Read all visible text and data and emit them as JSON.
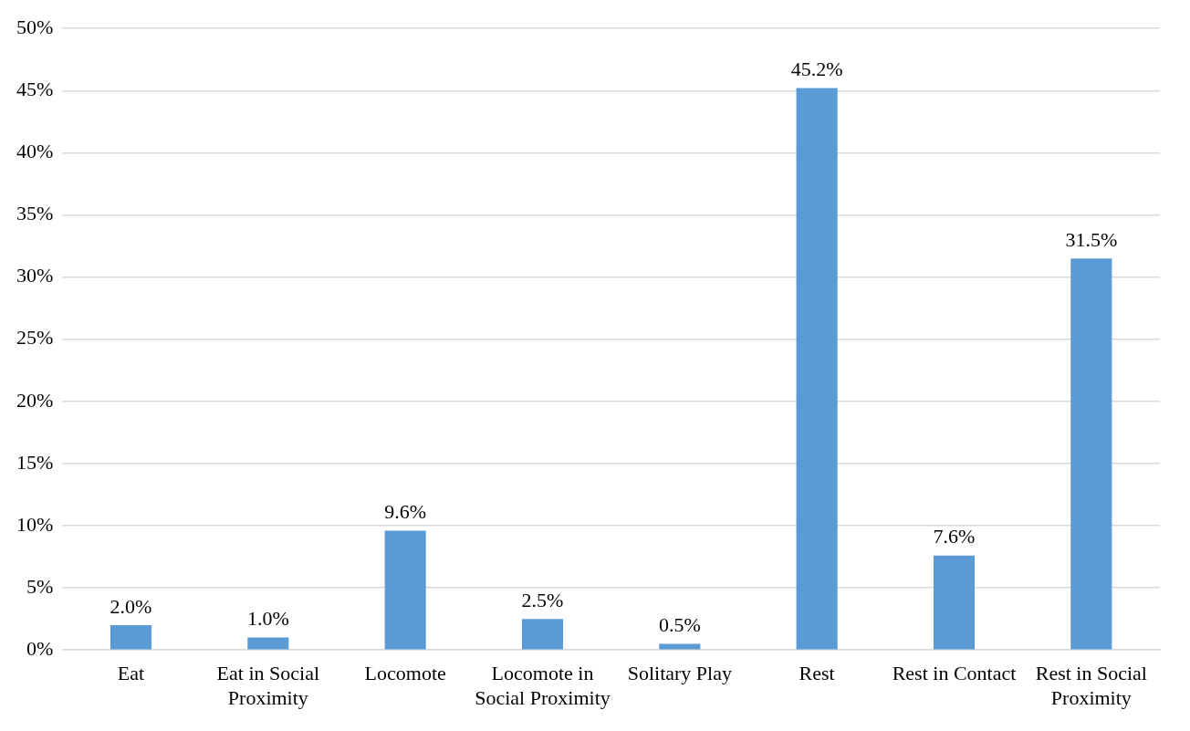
{
  "chart_data": {
    "type": "bar",
    "categories": [
      "Eat",
      "Eat in Social Proximity",
      "Locomote",
      "Locomote in Social Proximity",
      "Solitary Play",
      "Rest",
      "Rest in Contact",
      "Rest in Social Proximity"
    ],
    "values": [
      2.0,
      1.0,
      9.6,
      2.5,
      0.5,
      45.2,
      7.6,
      31.5
    ],
    "value_labels": [
      "2.0%",
      "1.0%",
      "9.6%",
      "2.5%",
      "0.5%",
      "45.2%",
      "7.6%",
      "31.5%"
    ],
    "color": "#5b9bd5",
    "ylim": [
      0,
      50
    ],
    "yticks": [
      {
        "value": 0,
        "label": "0%"
      },
      {
        "value": 5,
        "label": "5%"
      },
      {
        "value": 10,
        "label": "10%"
      },
      {
        "value": 15,
        "label": "15%"
      },
      {
        "value": 20,
        "label": "20%"
      },
      {
        "value": 25,
        "label": "25%"
      },
      {
        "value": 30,
        "label": "30%"
      },
      {
        "value": 35,
        "label": "35%"
      },
      {
        "value": 40,
        "label": "40%"
      },
      {
        "value": 45,
        "label": "45%"
      },
      {
        "value": 50,
        "label": "50%"
      }
    ],
    "grid": "y",
    "legend": false
  }
}
